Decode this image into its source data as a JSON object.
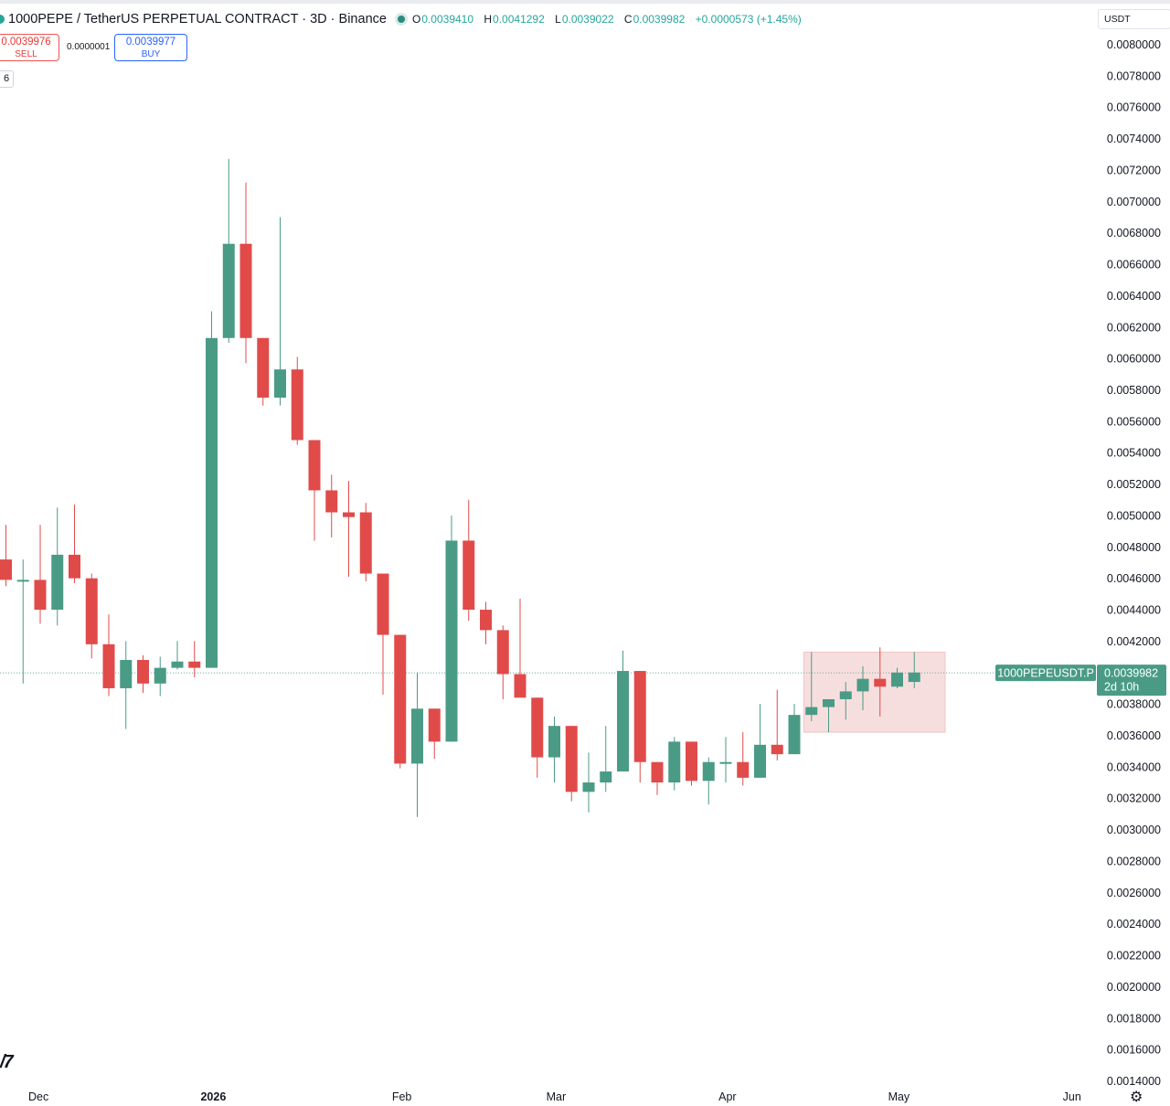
{
  "header": {
    "title": "1000PEPE / TetherUS PERPETUAL CONTRACT · 3D · Binance",
    "open_label": "O",
    "open": "0.0039410",
    "high_label": "H",
    "high": "0.0041292",
    "low_label": "L",
    "low": "0.0039022",
    "close_label": "C",
    "close": "0.0039982",
    "change": "+0.0000573 (+1.45%)"
  },
  "trade": {
    "sell_price": "0.0039976",
    "sell_label": "SELL",
    "spread": "0.0000001",
    "buy_price": "0.0039977",
    "buy_label": "BUY"
  },
  "indicator_tag": "6",
  "currency": "USDT",
  "price_label": {
    "symbol": "1000PEPEUSDT.P",
    "price": "0.0039982",
    "countdown": "2d 10h",
    "value": 0.0039982
  },
  "colors": {
    "up": "#4a9b86",
    "down": "#e04b4a",
    "axis_text": "#131722",
    "range_box": "#f7dede"
  },
  "icons": {
    "settings": "gear-icon",
    "logo": "tradingview-logo-icon"
  },
  "chart_data": {
    "type": "candlestick",
    "title": "1000PEPE / TetherUS PERPETUAL CONTRACT · 3D · Binance",
    "interval": "3D",
    "y_ticks": [
      "0.0080000",
      "0.0078000",
      "0.0076000",
      "0.0074000",
      "0.0072000",
      "0.0070000",
      "0.0068000",
      "0.0066000",
      "0.0064000",
      "0.0062000",
      "0.0060000",
      "0.0058000",
      "0.0056000",
      "0.0054000",
      "0.0052000",
      "0.0050000",
      "0.0048000",
      "0.0046000",
      "0.0044000",
      "0.0042000",
      "0.0040000",
      "0.0038000",
      "0.0036000",
      "0.0034000",
      "0.0032000",
      "0.0030000",
      "0.0028000",
      "0.0026000",
      "0.0024000",
      "0.0022000",
      "0.0020000",
      "0.0018000",
      "0.0016000",
      "0.0014000"
    ],
    "y_tick_values": [
      0.008,
      0.0078,
      0.0076,
      0.0074,
      0.0072,
      0.007,
      0.0068,
      0.0066,
      0.0064,
      0.0062,
      0.006,
      0.0058,
      0.0056,
      0.0054,
      0.0052,
      0.005,
      0.0048,
      0.0046,
      0.0044,
      0.0042,
      0.004,
      0.0038,
      0.0036,
      0.0034,
      0.0032,
      0.003,
      0.0028,
      0.0026,
      0.0024,
      0.0022,
      0.002,
      0.0018,
      0.0016,
      0.0014
    ],
    "ylim": [
      0.00132,
      0.00813
    ],
    "x_ticks": [
      {
        "label": "Dec",
        "bar": 1.9
      },
      {
        "label": "2026",
        "bar": 12.1
      },
      {
        "label": "Feb",
        "bar": 23.1
      },
      {
        "label": "Mar",
        "bar": 32.1
      },
      {
        "label": "Apr",
        "bar": 42.1
      },
      {
        "label": "May",
        "bar": 52.1
      },
      {
        "label": "Jun",
        "bar": 62.2
      }
    ],
    "candles": [
      {
        "o": 0.00472,
        "h": 0.00494,
        "l": 0.00455,
        "c": 0.00459
      },
      {
        "o": 0.00459,
        "h": 0.00472,
        "l": 0.00393,
        "c": 0.00459
      },
      {
        "o": 0.00459,
        "h": 0.00494,
        "l": 0.00431,
        "c": 0.0044
      },
      {
        "o": 0.0044,
        "h": 0.00505,
        "l": 0.0043,
        "c": 0.00475
      },
      {
        "o": 0.00475,
        "h": 0.00507,
        "l": 0.00457,
        "c": 0.0046
      },
      {
        "o": 0.0046,
        "h": 0.00463,
        "l": 0.00409,
        "c": 0.00418
      },
      {
        "o": 0.00418,
        "h": 0.00437,
        "l": 0.00385,
        "c": 0.0039
      },
      {
        "o": 0.0039,
        "h": 0.0042,
        "l": 0.00364,
        "c": 0.00408
      },
      {
        "o": 0.00408,
        "h": 0.00411,
        "l": 0.00387,
        "c": 0.00393
      },
      {
        "o": 0.00393,
        "h": 0.0041,
        "l": 0.00385,
        "c": 0.00403
      },
      {
        "o": 0.00403,
        "h": 0.0042,
        "l": 0.00402,
        "c": 0.00407
      },
      {
        "o": 0.00407,
        "h": 0.0042,
        "l": 0.00397,
        "c": 0.00403
      },
      {
        "o": 0.00403,
        "h": 0.0063,
        "l": 0.00403,
        "c": 0.00613
      },
      {
        "o": 0.00613,
        "h": 0.00727,
        "l": 0.0061,
        "c": 0.00673
      },
      {
        "o": 0.00673,
        "h": 0.00712,
        "l": 0.00597,
        "c": 0.00613
      },
      {
        "o": 0.00613,
        "h": 0.00613,
        "l": 0.0057,
        "c": 0.00575
      },
      {
        "o": 0.00575,
        "h": 0.0069,
        "l": 0.0057,
        "c": 0.00593
      },
      {
        "o": 0.00593,
        "h": 0.00601,
        "l": 0.00545,
        "c": 0.00548
      },
      {
        "o": 0.00548,
        "h": 0.00548,
        "l": 0.00484,
        "c": 0.00516
      },
      {
        "o": 0.00516,
        "h": 0.00526,
        "l": 0.00486,
        "c": 0.00502
      },
      {
        "o": 0.00502,
        "h": 0.00522,
        "l": 0.00461,
        "c": 0.00499
      },
      {
        "o": 0.00502,
        "h": 0.00508,
        "l": 0.00458,
        "c": 0.00463
      },
      {
        "o": 0.00463,
        "h": 0.00463,
        "l": 0.00386,
        "c": 0.00424
      },
      {
        "o": 0.00424,
        "h": 0.00424,
        "l": 0.00339,
        "c": 0.00342
      },
      {
        "o": 0.00342,
        "h": 0.004,
        "l": 0.00308,
        "c": 0.00377
      },
      {
        "o": 0.00377,
        "h": 0.00377,
        "l": 0.00345,
        "c": 0.00356
      },
      {
        "o": 0.00356,
        "h": 0.005,
        "l": 0.00356,
        "c": 0.00484
      },
      {
        "o": 0.00484,
        "h": 0.0051,
        "l": 0.00433,
        "c": 0.0044
      },
      {
        "o": 0.0044,
        "h": 0.00445,
        "l": 0.00418,
        "c": 0.00427
      },
      {
        "o": 0.00427,
        "h": 0.0043,
        "l": 0.00383,
        "c": 0.00399
      },
      {
        "o": 0.00399,
        "h": 0.00447,
        "l": 0.00384,
        "c": 0.00384
      },
      {
        "o": 0.00384,
        "h": 0.00384,
        "l": 0.00333,
        "c": 0.00346
      },
      {
        "o": 0.00346,
        "h": 0.00372,
        "l": 0.0033,
        "c": 0.00366
      },
      {
        "o": 0.00366,
        "h": 0.00366,
        "l": 0.00318,
        "c": 0.00324
      },
      {
        "o": 0.00324,
        "h": 0.00349,
        "l": 0.00311,
        "c": 0.0033
      },
      {
        "o": 0.0033,
        "h": 0.00366,
        "l": 0.00324,
        "c": 0.00337
      },
      {
        "o": 0.00337,
        "h": 0.00414,
        "l": 0.00337,
        "c": 0.00401
      },
      {
        "o": 0.00401,
        "h": 0.00401,
        "l": 0.0033,
        "c": 0.00343
      },
      {
        "o": 0.00343,
        "h": 0.00343,
        "l": 0.00322,
        "c": 0.0033
      },
      {
        "o": 0.0033,
        "h": 0.00359,
        "l": 0.00325,
        "c": 0.00356
      },
      {
        "o": 0.00356,
        "h": 0.00356,
        "l": 0.00328,
        "c": 0.00331
      },
      {
        "o": 0.00331,
        "h": 0.00346,
        "l": 0.00316,
        "c": 0.00343
      },
      {
        "o": 0.00342,
        "h": 0.00359,
        "l": 0.0033,
        "c": 0.00343
      },
      {
        "o": 0.00343,
        "h": 0.00362,
        "l": 0.00328,
        "c": 0.00333
      },
      {
        "o": 0.00333,
        "h": 0.0038,
        "l": 0.00333,
        "c": 0.00354
      },
      {
        "o": 0.00354,
        "h": 0.00389,
        "l": 0.00344,
        "c": 0.00348
      },
      {
        "o": 0.00348,
        "h": 0.0038,
        "l": 0.00348,
        "c": 0.00373
      },
      {
        "o": 0.00373,
        "h": 0.00413,
        "l": 0.00369,
        "c": 0.00378
      },
      {
        "o": 0.00378,
        "h": 0.00383,
        "l": 0.00362,
        "c": 0.00383
      },
      {
        "o": 0.00383,
        "h": 0.00394,
        "l": 0.0037,
        "c": 0.00388
      },
      {
        "o": 0.00388,
        "h": 0.00404,
        "l": 0.00376,
        "c": 0.00396
      },
      {
        "o": 0.00396,
        "h": 0.00416,
        "l": 0.00372,
        "c": 0.00391
      },
      {
        "o": 0.00391,
        "h": 0.00403,
        "l": 0.0039,
        "c": 0.004
      },
      {
        "o": 0.00394,
        "h": 0.00413,
        "l": 0.0039,
        "c": 0.004
      }
    ],
    "last_price": 0.0039982,
    "range_box": {
      "from_bar": 46.55,
      "to_bar": 54.8,
      "low": 0.00362,
      "high": 0.00413
    }
  }
}
